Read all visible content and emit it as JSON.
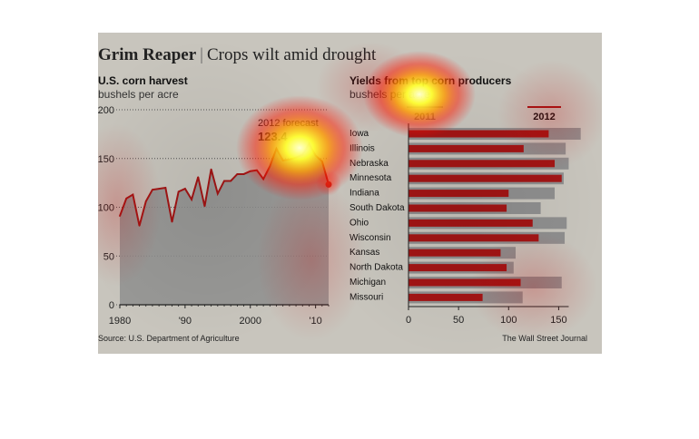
{
  "header": {
    "title_bold": "Grim Reaper",
    "separator": "|",
    "title_rest": "Crops wilt amid drought"
  },
  "chart_data": [
    {
      "type": "area",
      "title": "U.S. corn harvest",
      "subtitle": "bushels per acre",
      "x": [
        1980,
        1981,
        1982,
        1983,
        1984,
        1985,
        1986,
        1987,
        1988,
        1989,
        1990,
        1991,
        1992,
        1993,
        1994,
        1995,
        1996,
        1997,
        1998,
        1999,
        2000,
        2001,
        2002,
        2003,
        2004,
        2005,
        2006,
        2007,
        2008,
        2009,
        2010,
        2011,
        2012
      ],
      "y": [
        91,
        109,
        113,
        81,
        106,
        118,
        119,
        120,
        85,
        116,
        119,
        108,
        131,
        101,
        139,
        114,
        127,
        127,
        134,
        134,
        137,
        138,
        129,
        142,
        160,
        148,
        149,
        151,
        154,
        165,
        153,
        147,
        123.4
      ],
      "xticks": [
        "1980",
        "'90",
        "2000",
        "'10"
      ],
      "xtick_values": [
        1980,
        1990,
        2000,
        2010
      ],
      "yticks": [
        "0",
        "50",
        "100",
        "150",
        "200"
      ],
      "ytick_values": [
        0,
        50,
        100,
        150,
        200
      ],
      "ylim": [
        0,
        200
      ],
      "xlim": [
        1980,
        2012
      ],
      "annotation": {
        "label": "2012 forecast",
        "value": "123.4"
      },
      "colors": {
        "line": "#a31515",
        "area": "#8f8f8f",
        "forecast_dot": "#b22222"
      }
    },
    {
      "type": "bar",
      "orientation": "horizontal",
      "title": "Yields from top corn producers",
      "subtitle": "bushels per acre",
      "categories": [
        "Iowa",
        "Illinois",
        "Nebraska",
        "Minnesota",
        "Indiana",
        "South Dakota",
        "Ohio",
        "Wisconsin",
        "Kansas",
        "North Dakota",
        "Michigan",
        "Missouri"
      ],
      "series": [
        {
          "name": "2011",
          "values": [
            172,
            157,
            160,
            155,
            146,
            132,
            158,
            156,
            107,
            105,
            153,
            114
          ]
        },
        {
          "name": "2012",
          "values": [
            140,
            115,
            146,
            153,
            100,
            98,
            124,
            130,
            92,
            98,
            112,
            74
          ]
        }
      ],
      "xticks": [
        "0",
        "50",
        "100",
        "150"
      ],
      "xtick_values": [
        0,
        50,
        100,
        150
      ],
      "xlim": [
        0,
        175
      ],
      "colors": {
        "2011": "#8f8f8f",
        "2012": "#a31515"
      }
    }
  ],
  "footer": {
    "source": "Source: U.S. Department of Agriculture",
    "credit": "The Wall Street Journal"
  }
}
